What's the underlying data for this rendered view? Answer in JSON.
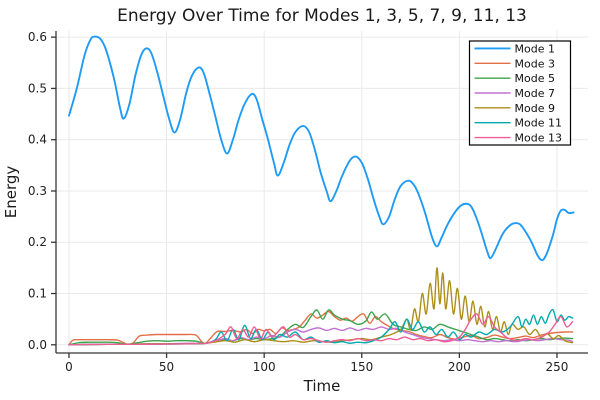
{
  "chart_data": {
    "type": "line",
    "title": "Energy Over Time for Modes 1, 3, 5, 7, 9, 11, 13",
    "xlabel": "Time",
    "ylabel": "Energy",
    "xlim": [
      -6.65,
      265.9
    ],
    "ylim": [
      -0.016,
      0.612
    ],
    "xticks": [
      0,
      50,
      100,
      150,
      200,
      250
    ],
    "xtick_labels": [
      "0",
      "50",
      "100",
      "150",
      "200",
      "250"
    ],
    "yticks": [
      0.0,
      0.1,
      0.2,
      0.3,
      0.4,
      0.5,
      0.6
    ],
    "ytick_labels": [
      "0.0",
      "0.1",
      "0.2",
      "0.3",
      "0.4",
      "0.5",
      "0.6"
    ],
    "grid": true,
    "legend_position": "top-right",
    "legend_border_color": "#000000",
    "grid_color": "#e9e9e9",
    "spine_color": "#363636",
    "series": [
      {
        "name": "Mode 1",
        "color": "#1f9bf5",
        "t": [
          0,
          4,
          8,
          11,
          13,
          16,
          19,
          23,
          26,
          28,
          31,
          34,
          37,
          39.5,
          42,
          45,
          48,
          51,
          54,
          57,
          60,
          63,
          66.5,
          69,
          72,
          75,
          78,
          81,
          84,
          87,
          90,
          93.5,
          96,
          99,
          102,
          105,
          107,
          110,
          113,
          116,
          120,
          123,
          126,
          129,
          132,
          134,
          137,
          140,
          144,
          147,
          150,
          153,
          156,
          159,
          161,
          164,
          167,
          170,
          174,
          177,
          180,
          183,
          186,
          188.5,
          191,
          194,
          198,
          201,
          203.5,
          206,
          209,
          212,
          214,
          216,
          219,
          222,
          225,
          228,
          231,
          234,
          237,
          240,
          242.5,
          245,
          248,
          250,
          252,
          254,
          256,
          258.5
        ],
        "e": [
          0.447,
          0.5,
          0.565,
          0.595,
          0.601,
          0.597,
          0.575,
          0.52,
          0.465,
          0.441,
          0.47,
          0.525,
          0.565,
          0.578,
          0.57,
          0.535,
          0.49,
          0.445,
          0.414,
          0.44,
          0.49,
          0.525,
          0.541,
          0.53,
          0.49,
          0.445,
          0.4,
          0.373,
          0.4,
          0.44,
          0.47,
          0.489,
          0.48,
          0.44,
          0.4,
          0.355,
          0.33,
          0.355,
          0.39,
          0.415,
          0.427,
          0.415,
          0.38,
          0.335,
          0.3,
          0.28,
          0.3,
          0.33,
          0.36,
          0.367,
          0.355,
          0.325,
          0.285,
          0.25,
          0.235,
          0.25,
          0.285,
          0.31,
          0.32,
          0.31,
          0.285,
          0.25,
          0.21,
          0.192,
          0.21,
          0.235,
          0.26,
          0.272,
          0.275,
          0.27,
          0.245,
          0.21,
          0.185,
          0.169,
          0.19,
          0.215,
          0.23,
          0.237,
          0.235,
          0.22,
          0.2,
          0.175,
          0.165,
          0.18,
          0.215,
          0.245,
          0.262,
          0.263,
          0.257,
          0.258
        ]
      },
      {
        "name": "Mode 3",
        "color": "#e36f47",
        "t": [
          0,
          2,
          5,
          10,
          15,
          20,
          25,
          28,
          30,
          33,
          36,
          40,
          45,
          50,
          55,
          60,
          65,
          68,
          70,
          73,
          76,
          80,
          84,
          88,
          91,
          94,
          97,
          100,
          103,
          106,
          109,
          112,
          115,
          118,
          121,
          124,
          127,
          130,
          133,
          136,
          139,
          142,
          145,
          148,
          151,
          154,
          157,
          160,
          163,
          166,
          170,
          174,
          178,
          182,
          186,
          190,
          194,
          198,
          202,
          206,
          210,
          214,
          218,
          222,
          226,
          230,
          234,
          238,
          242,
          246,
          250,
          254,
          258
        ],
        "e": [
          0,
          0.009,
          0.01,
          0.01,
          0.01,
          0.01,
          0.009,
          0.004,
          0.001,
          0.004,
          0.017,
          0.019,
          0.02,
          0.02,
          0.02,
          0.02,
          0.019,
          0.006,
          0.003,
          0.015,
          0.026,
          0.026,
          0.028,
          0.025,
          0.03,
          0.022,
          0.03,
          0.027,
          0.03,
          0.022,
          0.033,
          0.028,
          0.03,
          0.035,
          0.048,
          0.06,
          0.052,
          0.058,
          0.065,
          0.055,
          0.048,
          0.052,
          0.046,
          0.055,
          0.06,
          0.042,
          0.055,
          0.045,
          0.038,
          0.032,
          0.028,
          0.026,
          0.02,
          0.016,
          0.014,
          0.02,
          0.014,
          0.011,
          0.015,
          0.018,
          0.012,
          0.014,
          0.019,
          0.015,
          0.012,
          0.014,
          0.017,
          0.014,
          0.019,
          0.022,
          0.024,
          0.025,
          0.025
        ]
      },
      {
        "name": "Mode 5",
        "color": "#3da44e",
        "t": [
          0,
          5,
          10,
          15,
          20,
          25,
          30,
          35,
          40,
          45,
          50,
          55,
          60,
          65,
          70,
          75,
          80,
          84,
          88,
          92,
          96,
          100,
          104,
          108,
          112,
          116,
          120,
          124,
          127,
          130,
          133,
          136,
          140,
          144,
          148,
          152,
          155,
          158,
          162,
          166,
          170,
          174,
          178,
          182,
          186,
          190,
          194,
          198,
          202,
          206,
          210,
          214,
          218,
          222,
          226,
          230,
          234,
          238,
          242,
          246,
          250,
          254,
          258
        ],
        "e": [
          0,
          0.004,
          0.005,
          0.005,
          0.005,
          0.004,
          0.001,
          0.004,
          0.007,
          0.008,
          0.007,
          0.008,
          0.008,
          0.007,
          0.003,
          0.008,
          0.01,
          0.008,
          0.012,
          0.01,
          0.012,
          0.01,
          0.012,
          0.016,
          0.03,
          0.04,
          0.034,
          0.055,
          0.068,
          0.05,
          0.068,
          0.058,
          0.05,
          0.047,
          0.04,
          0.046,
          0.064,
          0.05,
          0.06,
          0.04,
          0.035,
          0.03,
          0.028,
          0.035,
          0.03,
          0.04,
          0.035,
          0.03,
          0.025,
          0.02,
          0.015,
          0.01,
          0.012,
          0.01,
          0.008,
          0.01,
          0.008,
          0.01,
          0.012,
          0.01,
          0.012,
          0.013,
          0.012
        ]
      },
      {
        "name": "Mode 7",
        "color": "#c270d2",
        "t": [
          0,
          10,
          20,
          30,
          40,
          50,
          60,
          70,
          76,
          80,
          84,
          88,
          92,
          96,
          100,
          104,
          108,
          112,
          116,
          120,
          124,
          128,
          132,
          136,
          140,
          144,
          148,
          152,
          156,
          160,
          164,
          168,
          172,
          176,
          180,
          184,
          188,
          192,
          196,
          200,
          204,
          208,
          212,
          216,
          220,
          224,
          228,
          232,
          236,
          240,
          244,
          248,
          252,
          256,
          258
        ],
        "e": [
          0,
          0.001,
          0.001,
          0.001,
          0.002,
          0.002,
          0.003,
          0.003,
          0.008,
          0.012,
          0.008,
          0.014,
          0.01,
          0.015,
          0.012,
          0.018,
          0.015,
          0.025,
          0.03,
          0.025,
          0.03,
          0.033,
          0.028,
          0.032,
          0.028,
          0.033,
          0.028,
          0.032,
          0.03,
          0.035,
          0.03,
          0.032,
          0.025,
          0.02,
          0.015,
          0.012,
          0.01,
          0.008,
          0.01,
          0.008,
          0.01,
          0.008,
          0.006,
          0.008,
          0.006,
          0.008,
          0.006,
          0.008,
          0.01,
          0.008,
          0.01,
          0.012,
          0.01,
          0.009,
          0.006
        ]
      },
      {
        "name": "Mode 9",
        "color": "#ac8e18",
        "t": [
          0,
          20,
          40,
          60,
          70,
          80,
          85,
          90,
          95,
          100,
          105,
          110,
          115,
          120,
          125,
          130,
          135,
          140,
          145,
          150,
          155,
          160,
          165,
          170,
          173,
          175,
          177,
          179,
          181,
          183,
          185,
          187,
          188.5,
          190,
          191.5,
          193,
          195,
          197,
          199,
          201,
          203,
          205,
          207,
          209,
          211,
          213,
          215,
          217,
          219,
          221,
          223,
          225,
          227,
          230,
          233,
          236,
          239,
          242,
          245,
          248,
          251,
          254,
          258
        ],
        "e": [
          0,
          0.001,
          0.002,
          0.002,
          0.003,
          0.008,
          0.005,
          0.01,
          0.006,
          0.01,
          0.008,
          0.006,
          0.008,
          0.005,
          0.008,
          0.006,
          0.005,
          0.008,
          0.01,
          0.012,
          0.01,
          0.015,
          0.02,
          0.03,
          0.05,
          0.03,
          0.07,
          0.045,
          0.1,
          0.06,
          0.12,
          0.07,
          0.15,
          0.08,
          0.14,
          0.07,
          0.125,
          0.06,
          0.11,
          0.05,
          0.095,
          0.045,
          0.085,
          0.04,
          0.075,
          0.035,
          0.065,
          0.03,
          0.055,
          0.025,
          0.045,
          0.02,
          0.04,
          0.03,
          0.035,
          0.02,
          0.03,
          0.015,
          0.022,
          0.012,
          0.018,
          0.008,
          0.004
        ]
      },
      {
        "name": "Mode 11",
        "color": "#00aaae",
        "t": [
          0,
          20,
          40,
          60,
          70,
          75,
          78,
          81,
          84,
          87,
          90,
          93,
          96,
          99,
          102,
          105,
          108,
          112,
          116,
          120,
          124,
          128,
          132,
          136,
          140,
          144,
          148,
          152,
          156,
          160,
          164,
          167,
          170,
          173,
          176,
          179,
          182,
          185,
          188,
          191,
          194,
          197,
          200,
          203,
          206,
          210,
          214,
          218,
          222,
          226,
          230,
          232,
          234,
          236,
          238,
          240,
          242,
          244,
          246,
          248,
          250,
          252,
          254,
          256,
          258
        ],
        "e": [
          0,
          0.001,
          0.001,
          0.002,
          0.003,
          0.01,
          0.025,
          0.008,
          0.03,
          0.01,
          0.038,
          0.012,
          0.03,
          0.01,
          0.025,
          0.01,
          0.02,
          0.015,
          0.025,
          0.01,
          0.015,
          0.005,
          0.008,
          0.004,
          0.006,
          0.003,
          0.005,
          0.004,
          0.008,
          0.015,
          0.03,
          0.045,
          0.025,
          0.05,
          0.03,
          0.045,
          0.025,
          0.035,
          0.02,
          0.03,
          0.015,
          0.025,
          0.01,
          0.02,
          0.015,
          0.025,
          0.02,
          0.03,
          0.025,
          0.035,
          0.055,
          0.035,
          0.05,
          0.04,
          0.058,
          0.04,
          0.055,
          0.042,
          0.06,
          0.068,
          0.045,
          0.058,
          0.048,
          0.055,
          0.052
        ]
      },
      {
        "name": "Mode 13",
        "color": "#ed5e93",
        "t": [
          0,
          20,
          40,
          60,
          70,
          75,
          80,
          83,
          86,
          89,
          92,
          95,
          98,
          101,
          104,
          107,
          110,
          113,
          116,
          120,
          124,
          128,
          132,
          136,
          140,
          144,
          148,
          152,
          156,
          160,
          164,
          168,
          172,
          176,
          180,
          184,
          188,
          192,
          196,
          200,
          203,
          206,
          209,
          212,
          215,
          218,
          221,
          224,
          227,
          230,
          234,
          238,
          242,
          246,
          249,
          252,
          255,
          258
        ],
        "e": [
          0,
          0.001,
          0.001,
          0.002,
          0.003,
          0.008,
          0.02,
          0.035,
          0.012,
          0.03,
          0.015,
          0.035,
          0.012,
          0.03,
          0.015,
          0.025,
          0.035,
          0.015,
          0.02,
          0.01,
          0.012,
          0.008,
          0.005,
          0.008,
          0.01,
          0.008,
          0.012,
          0.008,
          0.01,
          0.008,
          0.012,
          0.01,
          0.015,
          0.01,
          0.012,
          0.008,
          0.01,
          0.006,
          0.008,
          0.015,
          0.03,
          0.05,
          0.06,
          0.04,
          0.055,
          0.035,
          0.025,
          0.015,
          0.01,
          0.008,
          0.012,
          0.01,
          0.015,
          0.025,
          0.04,
          0.055,
          0.035,
          0.045
        ]
      }
    ]
  }
}
